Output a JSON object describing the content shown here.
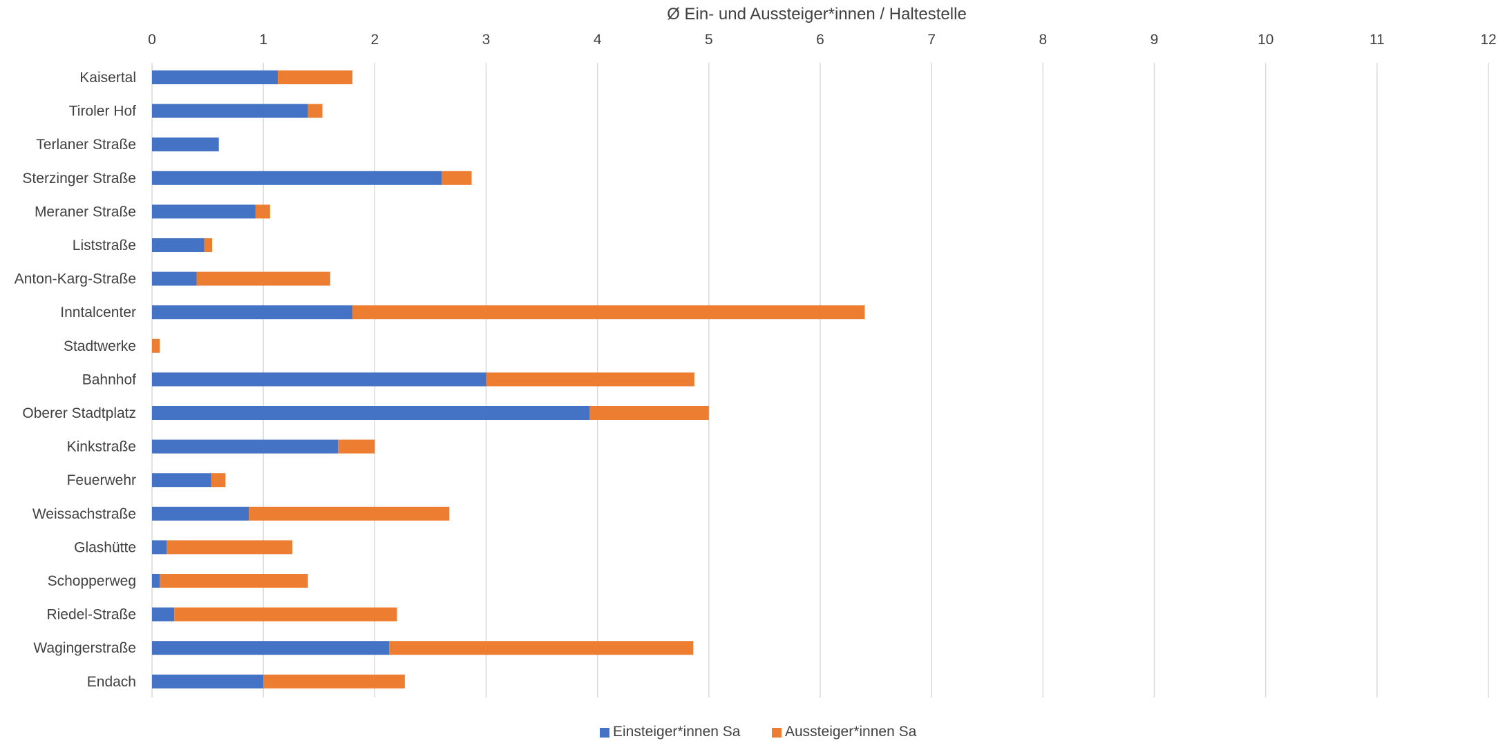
{
  "chart_data": {
    "type": "bar",
    "orientation": "horizontal",
    "stacked": true,
    "title": "",
    "xlabel": "Ø Ein- und Aussteiger*innen / Haltestelle",
    "xlabel_position": "top",
    "xlim": [
      0,
      12
    ],
    "xticks": [
      0,
      1,
      2,
      3,
      4,
      5,
      6,
      7,
      8,
      9,
      10,
      11,
      12
    ],
    "grid": "vertical",
    "legend": "bottom",
    "categories": [
      "Kaisertal",
      "Tiroler Hof",
      "Terlaner Straße",
      "Sterzinger Straße",
      "Meraner Straße",
      "Liststraße",
      "Anton-Karg-Straße",
      "Inntalcenter",
      "Stadtwerke",
      "Bahnhof",
      "Oberer Stadtplatz",
      "Kinkstraße",
      "Feuerwehr",
      "Weissachstraße",
      "Glashütte",
      "Schopperweg",
      "Riedel-Straße",
      "Wagingerstraße",
      "Endach"
    ],
    "series": [
      {
        "name": "Einsteiger*innen Sa",
        "color": "#4472C4",
        "values": [
          1.13,
          1.4,
          0.6,
          2.6,
          0.93,
          0.47,
          0.4,
          1.8,
          0.0,
          3.0,
          3.93,
          1.67,
          0.53,
          0.87,
          0.13,
          0.07,
          0.2,
          2.13,
          1.0
        ]
      },
      {
        "name": "Aussteiger*innen Sa",
        "color": "#ED7D31",
        "values": [
          0.67,
          0.13,
          0.0,
          0.27,
          0.13,
          0.07,
          1.2,
          4.6,
          0.07,
          1.87,
          1.07,
          0.33,
          0.13,
          1.8,
          1.13,
          1.33,
          2.0,
          2.73,
          1.27
        ]
      }
    ]
  }
}
